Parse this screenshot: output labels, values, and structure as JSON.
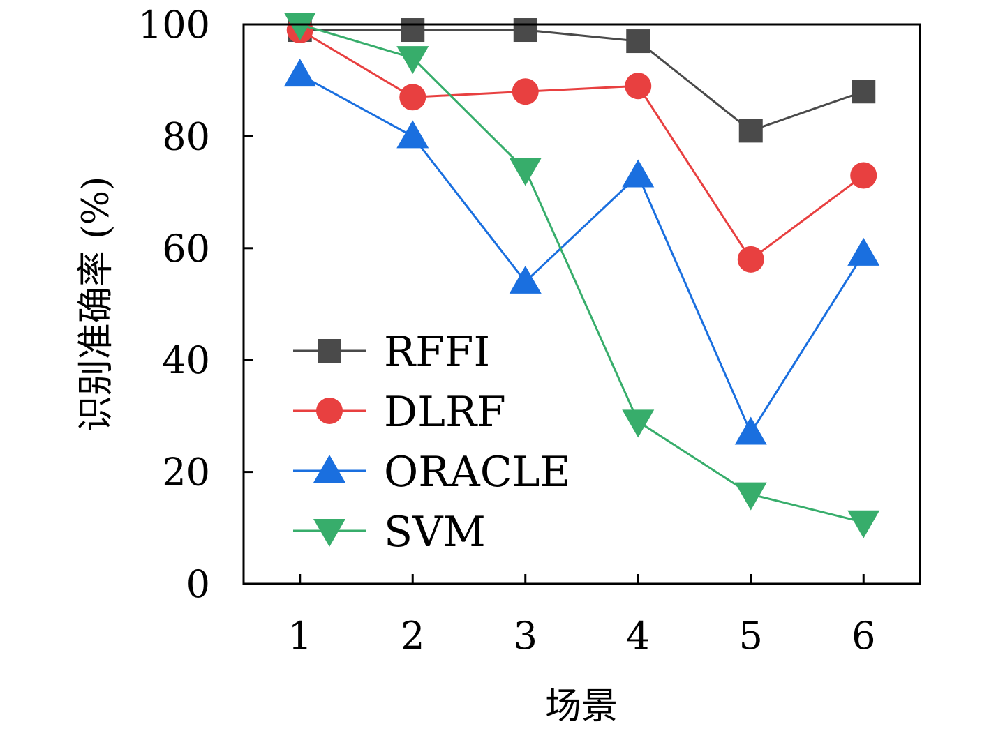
{
  "chart_data": {
    "type": "line",
    "xlabel": "场景",
    "ylabel": "识别准确率 (%)",
    "x": [
      1,
      2,
      3,
      4,
      5,
      6
    ],
    "xticks": [
      "1",
      "2",
      "3",
      "4",
      "5",
      "6"
    ],
    "yticks": [
      "0",
      "20",
      "40",
      "60",
      "80",
      "100"
    ],
    "xlim": [
      0.5,
      6.5
    ],
    "ylim": [
      0,
      100
    ],
    "grid": false,
    "legend_position": "bottom-left",
    "series": [
      {
        "name": "RFFI",
        "marker": "square",
        "color": "#4a4a4a",
        "values": [
          99,
          99,
          99,
          97,
          81,
          88
        ]
      },
      {
        "name": "DLRF",
        "marker": "circle",
        "color": "#e84040",
        "values": [
          99,
          87,
          88,
          89,
          58,
          73
        ]
      },
      {
        "name": "ORACLE",
        "marker": "triangle-up",
        "color": "#1a6fdf",
        "values": [
          91,
          80,
          54,
          73,
          27,
          59
        ]
      },
      {
        "name": "SVM",
        "marker": "triangle-down",
        "color": "#37ad6b",
        "values": [
          100,
          94,
          74,
          29,
          16,
          11
        ]
      }
    ]
  }
}
